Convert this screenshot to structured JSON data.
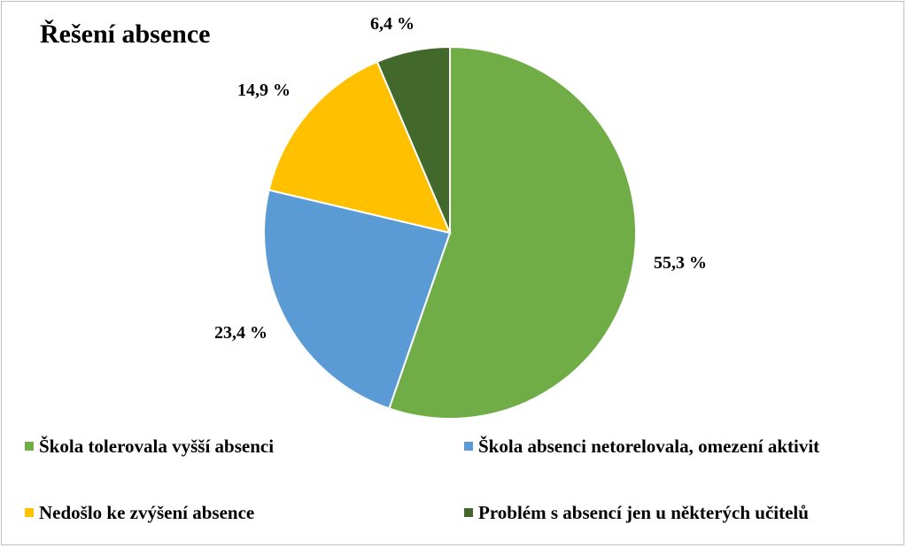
{
  "chart_data": {
    "type": "pie",
    "title": "Řešení absence",
    "categories": [
      "Škola tolerovala vyšší absenci",
      "Škola absenci netorelovala, omezení aktivit",
      "Nedošlo ke zvýšení absence",
      "Problém s absencí jen u některých učitelů"
    ],
    "values": [
      55.3,
      23.4,
      14.9,
      6.4
    ],
    "value_labels": [
      "55,3 %",
      "23,4 %",
      "14,9 %",
      "6,4 %"
    ],
    "colors": [
      "#70ad47",
      "#5b9bd5",
      "#ffc000",
      "#43682b"
    ],
    "start_angle_deg": 0,
    "direction": "clockwise",
    "legend_position": "bottom"
  }
}
